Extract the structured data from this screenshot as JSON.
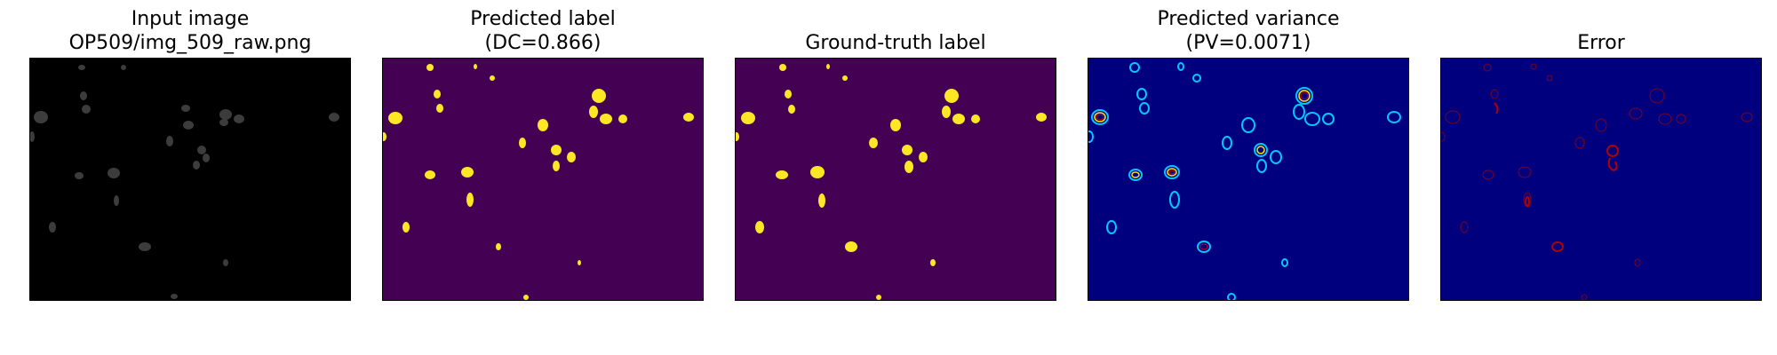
{
  "panels": [
    {
      "title_line1": "Input image",
      "title_line2": "OP509/img_509_raw.png"
    },
    {
      "title_line1": "Predicted label",
      "title_line2": "(DC=0.866)"
    },
    {
      "title_line1": "Ground-truth label"
    },
    {
      "title_line1": "Predicted variance",
      "title_line2": "(PV=0.0071)"
    },
    {
      "title_line1": "Error"
    }
  ],
  "colors": {
    "input_bg": "#000000",
    "label_bg": "#440154",
    "label_fg": "#fde725",
    "variance_bg": "#00007f",
    "error_bg": "#00007f",
    "error_fg": "#b00000"
  }
}
